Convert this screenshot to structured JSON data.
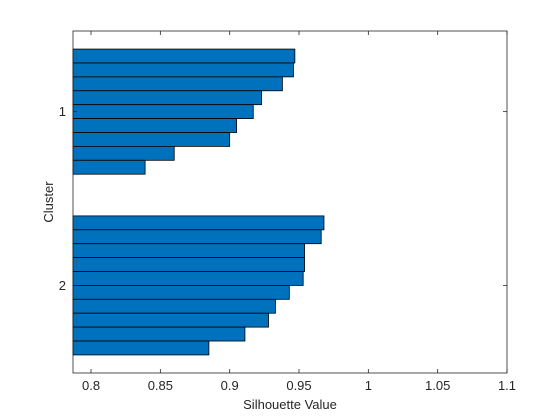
{
  "chart_data": {
    "type": "bar",
    "orientation": "horizontal",
    "xlabel": "Silhouette Value",
    "ylabel": "Cluster",
    "xlim": [
      0.787,
      1.1
    ],
    "xticks": [
      0.8,
      0.85,
      0.9,
      0.95,
      1.0,
      1.05,
      1.1
    ],
    "xtick_labels": [
      "0.8",
      "0.85",
      "0.9",
      "0.95",
      "1",
      "1.05",
      "1.1"
    ],
    "bar_color": "#0072BD",
    "edge_color": "#000000",
    "grid": false,
    "clusters": [
      {
        "label": "1",
        "values": [
          0.947,
          0.946,
          0.938,
          0.923,
          0.917,
          0.905,
          0.9,
          0.86,
          0.839
        ]
      },
      {
        "label": "2",
        "values": [
          0.968,
          0.966,
          0.954,
          0.954,
          0.953,
          0.943,
          0.933,
          0.928,
          0.911,
          0.885
        ]
      }
    ]
  }
}
